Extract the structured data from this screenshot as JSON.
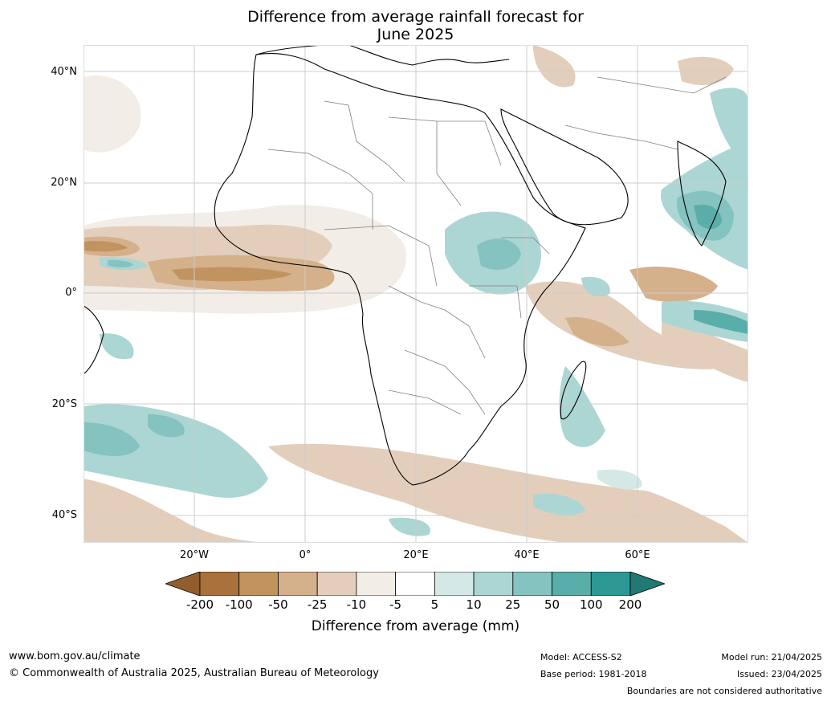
{
  "title_line1": "Difference from average rainfall forecast for",
  "title_line2": "June 2025",
  "lat_labels": [
    "40°N",
    "20°N",
    "0°",
    "20°S",
    "40°S"
  ],
  "lon_labels": [
    "20°W",
    "0°",
    "20°E",
    "40°E",
    "60°E"
  ],
  "colorbar": {
    "ticks": [
      "-200",
      "-100",
      "-50",
      "-25",
      "-10",
      "-5",
      "5",
      "10",
      "25",
      "50",
      "100",
      "200"
    ],
    "colors": [
      "#a9713b",
      "#c1935f",
      "#d4b08b",
      "#e3cebc",
      "#f2ede6",
      "#ffffff",
      "#d4e8e6",
      "#acd6d3",
      "#84c3c0",
      "#5aaeaa",
      "#2e9894",
      "#217875",
      "#925e2d"
    ],
    "label": "Difference from average (mm)"
  },
  "footer": {
    "url": "www.bom.gov.au/climate",
    "copyright": "© Commonwealth of Australia 2025, Australian Bureau of Meteorology",
    "model": "Model: ACCESS-S2",
    "base_period": "Base period: 1981-2018",
    "model_run": "Model run: 21/04/2025",
    "issued": "Issued: 23/04/2025",
    "boundaries": "Boundaries are not considered authoritative"
  }
}
